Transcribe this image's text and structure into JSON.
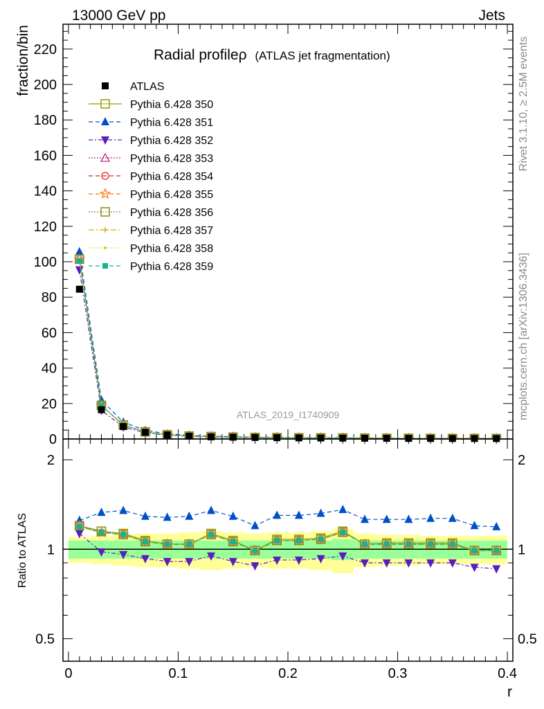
{
  "header": {
    "left": "13000 GeV pp",
    "right": "Jets"
  },
  "side_labels": {
    "rivet": "Rivet 3.1.10, ≥ 2.5M events",
    "mcplots": "mcplots.cern.ch [arXiv:1306.3436]"
  },
  "chart_data": {
    "type": "line",
    "title": "Radial profileρ",
    "subtitle": "(ATLAS jet fragmentation)",
    "analysis_label": "ATLAS_2019_I1740909",
    "xlabel": "r",
    "ylabel": "fraction/bin",
    "ratio_ylabel": "Ratio to ATLAS",
    "xlim": [
      -0.005,
      0.405
    ],
    "ylim": [
      0,
      234
    ],
    "ratio_ylim": [
      0.42,
      2.35
    ],
    "ratio_log_scale": true,
    "x_ticks": [
      "0",
      "0.1",
      "0.2",
      "0.3",
      "0.4"
    ],
    "y_ticks": [
      "0",
      "20",
      "40",
      "60",
      "80",
      "100",
      "120",
      "140",
      "160",
      "180",
      "200",
      "220"
    ],
    "ratio_ticks": [
      "0.5",
      "1",
      "2"
    ],
    "x": [
      0.01,
      0.03,
      0.05,
      0.07,
      0.09,
      0.11,
      0.13,
      0.15,
      0.17,
      0.19,
      0.21,
      0.23,
      0.25,
      0.27,
      0.29,
      0.31,
      0.33,
      0.35,
      0.37,
      0.39
    ],
    "data": {
      "name": "ATLAS",
      "values": [
        84.5,
        16.5,
        7.0,
        3.8,
        2.3,
        1.6,
        1.2,
        1.0,
        0.85,
        0.72,
        0.62,
        0.55,
        0.48,
        0.42,
        0.38,
        0.34,
        0.3,
        0.27,
        0.25,
        0.23
      ],
      "band_inner": [
        0.07,
        0.07,
        0.07,
        0.07,
        0.07,
        0.07,
        0.07,
        0.07,
        0.07,
        0.07,
        0.07,
        0.07,
        0.08,
        0.07,
        0.07,
        0.07,
        0.07,
        0.07,
        0.07,
        0.07
      ],
      "band_outer": [
        0.1,
        0.11,
        0.12,
        0.13,
        0.13,
        0.14,
        0.15,
        0.14,
        0.13,
        0.14,
        0.14,
        0.15,
        0.17,
        0.13,
        0.12,
        0.12,
        0.11,
        0.11,
        0.11,
        0.11
      ]
    },
    "series": [
      {
        "name": "Pythia 6.428 350",
        "color": "#999900",
        "dash": "",
        "marker": "square-open",
        "ratios": [
          1.2,
          1.15,
          1.13,
          1.07,
          1.04,
          1.04,
          1.13,
          1.07,
          0.99,
          1.08,
          1.08,
          1.09,
          1.15,
          1.04,
          1.05,
          1.05,
          1.05,
          1.05,
          0.99,
          0.99
        ]
      },
      {
        "name": "Pythia 6.428 351",
        "color": "#0050c8",
        "dash": "6,4",
        "marker": "triangle-up",
        "ratios": [
          1.25,
          1.33,
          1.35,
          1.29,
          1.28,
          1.29,
          1.35,
          1.29,
          1.2,
          1.3,
          1.3,
          1.32,
          1.36,
          1.26,
          1.26,
          1.26,
          1.27,
          1.27,
          1.2,
          1.19
        ]
      },
      {
        "name": "Pythia 6.428 352",
        "color": "#5a1ebe",
        "dash": "6,3,2,3",
        "marker": "triangle-down",
        "ratios": [
          1.13,
          0.98,
          0.96,
          0.93,
          0.91,
          0.91,
          0.95,
          0.91,
          0.88,
          0.92,
          0.92,
          0.93,
          0.95,
          0.9,
          0.9,
          0.9,
          0.9,
          0.9,
          0.87,
          0.86
        ]
      },
      {
        "name": "Pythia 6.428 353",
        "color": "#b4288c",
        "dash": "2,2",
        "marker": "triangle-open",
        "ratios": [
          1.2,
          1.14,
          1.12,
          1.06,
          1.04,
          1.04,
          1.12,
          1.06,
          0.99,
          1.07,
          1.07,
          1.08,
          1.14,
          1.04,
          1.04,
          1.04,
          1.04,
          1.04,
          0.99,
          0.99
        ]
      },
      {
        "name": "Pythia 6.428 354",
        "color": "#e41e1e",
        "dash": "6,4",
        "marker": "circle-open",
        "ratios": [
          1.2,
          1.14,
          1.12,
          1.06,
          1.04,
          1.04,
          1.12,
          1.06,
          0.99,
          1.07,
          1.07,
          1.08,
          1.14,
          1.04,
          1.04,
          1.04,
          1.04,
          1.04,
          0.99,
          0.99
        ]
      },
      {
        "name": "Pythia 6.428 355",
        "color": "#f07814",
        "dash": "6,4",
        "marker": "star-open",
        "ratios": [
          1.2,
          1.14,
          1.12,
          1.06,
          1.04,
          1.04,
          1.12,
          1.06,
          0.99,
          1.07,
          1.07,
          1.08,
          1.14,
          1.04,
          1.04,
          1.04,
          1.04,
          1.04,
          0.99,
          0.99
        ]
      },
      {
        "name": "Pythia 6.428 356",
        "color": "#8c8c14",
        "dash": "2,2",
        "marker": "square-open",
        "ratios": [
          1.2,
          1.15,
          1.12,
          1.06,
          1.04,
          1.04,
          1.12,
          1.06,
          0.99,
          1.07,
          1.07,
          1.08,
          1.14,
          1.04,
          1.04,
          1.04,
          1.04,
          1.04,
          0.99,
          0.99
        ]
      },
      {
        "name": "Pythia 6.428 357",
        "color": "#d2b400",
        "dash": "8,3,2,3",
        "marker": "cross",
        "ratios": [
          1.19,
          1.14,
          1.12,
          1.06,
          1.04,
          1.04,
          1.12,
          1.06,
          0.99,
          1.07,
          1.07,
          1.08,
          1.14,
          1.04,
          1.04,
          1.04,
          1.04,
          1.04,
          0.99,
          0.99
        ]
      },
      {
        "name": "Pythia 6.428 358",
        "color": "#c8dc00",
        "dash": "1,2",
        "marker": "dot",
        "ratios": [
          1.19,
          1.14,
          1.12,
          1.06,
          1.04,
          1.04,
          1.12,
          1.06,
          0.99,
          1.07,
          1.07,
          1.08,
          1.14,
          1.04,
          1.04,
          1.04,
          1.04,
          1.04,
          0.99,
          0.99
        ]
      },
      {
        "name": "Pythia 6.428 359",
        "color": "#14b48c",
        "dash": "6,4",
        "marker": "square-small",
        "ratios": [
          1.19,
          1.14,
          1.12,
          1.06,
          1.04,
          1.04,
          1.12,
          1.06,
          0.99,
          1.07,
          1.07,
          1.08,
          1.14,
          1.04,
          1.04,
          1.04,
          1.04,
          1.04,
          0.99,
          0.99
        ]
      }
    ],
    "colors": {
      "band_inner": "#99ff99",
      "band_outer": "#ffff99",
      "data_marker": "#000000"
    },
    "legend_position": "top-left",
    "grid": false
  }
}
